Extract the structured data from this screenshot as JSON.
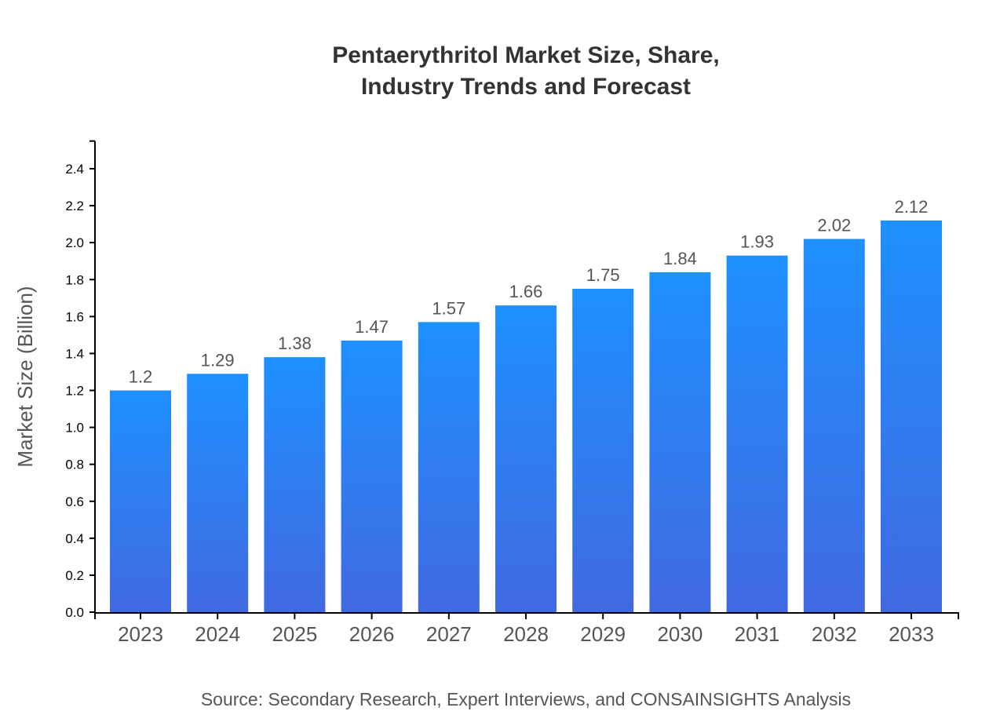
{
  "chart_data": {
    "type": "bar",
    "title_lines": [
      "Pentaerythritol Market Size, Share,",
      "Industry Trends and Forecast"
    ],
    "xlabel": "",
    "ylabel": "Market Size (Billion)",
    "categories": [
      "2023",
      "2024",
      "2025",
      "2026",
      "2027",
      "2028",
      "2029",
      "2030",
      "2031",
      "2032",
      "2033"
    ],
    "values": [
      1.2,
      1.29,
      1.38,
      1.47,
      1.57,
      1.66,
      1.75,
      1.84,
      1.93,
      2.02,
      2.12
    ],
    "data_labels": [
      "1.2",
      "1.29",
      "1.38",
      "1.47",
      "1.57",
      "1.66",
      "1.75",
      "1.84",
      "1.93",
      "2.02",
      "2.12"
    ],
    "ylim": [
      0,
      2.55
    ],
    "yticks": [
      "0.0",
      "0.2",
      "0.4",
      "0.6",
      "0.8",
      "1.0",
      "1.2",
      "1.4",
      "1.6",
      "1.8",
      "2.0",
      "2.2",
      "2.4"
    ],
    "grid": false,
    "colors": {
      "bar_top": "#1E90FF",
      "bar_bottom": "#4169E1"
    },
    "source": "Source: Secondary Research, Expert Interviews, and CONSAINSIGHTS Analysis"
  }
}
